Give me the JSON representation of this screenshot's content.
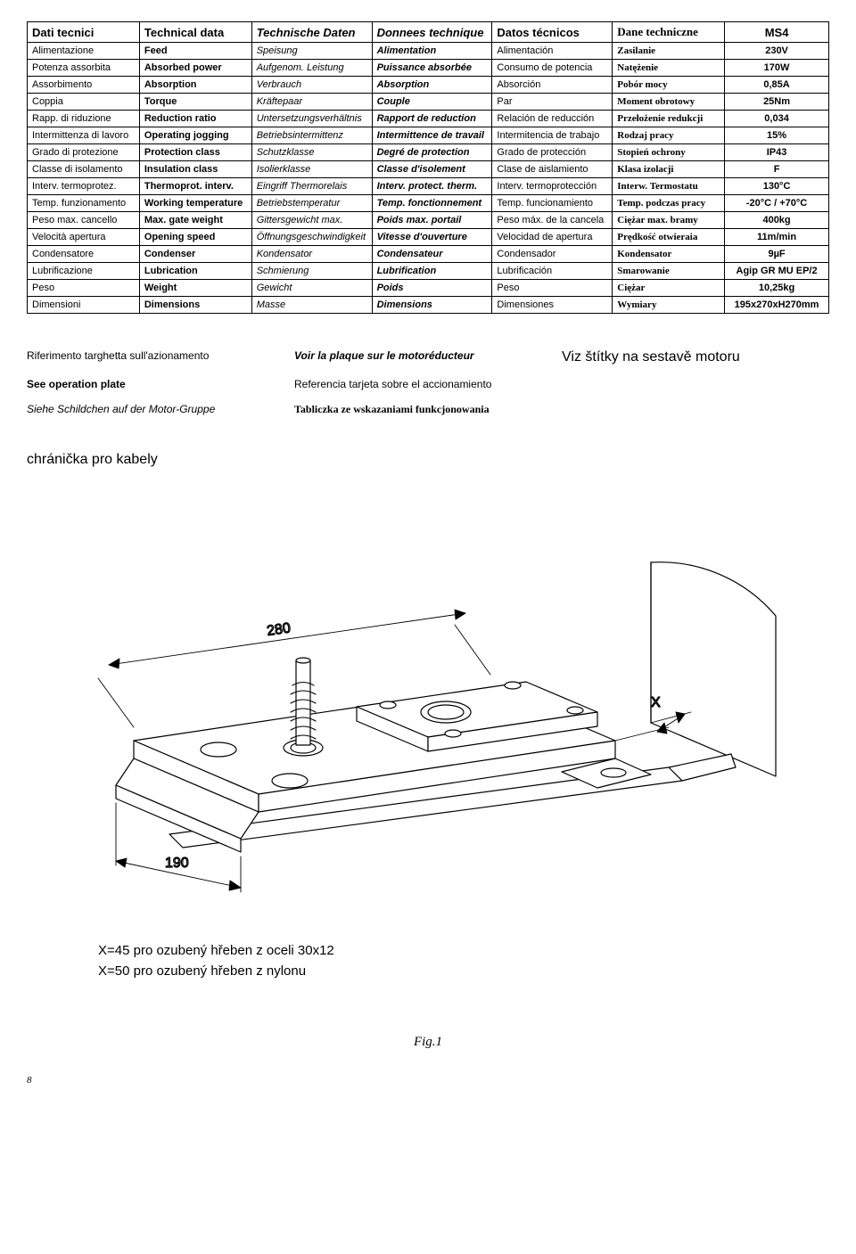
{
  "table": {
    "headers": {
      "it": "Dati tecnici",
      "en": "Technical data",
      "de": "Technische Daten",
      "fr": "Donnees technique",
      "es": "Datos técnicos",
      "pl": "Dane techniczne",
      "model": "MS4"
    },
    "rows": [
      {
        "it": "Alimentazione",
        "en": "Feed",
        "de": "Speisung",
        "fr": "Alimentation",
        "es": "Alimentación",
        "pl": "Zasilanie",
        "val": "230V"
      },
      {
        "it": "Potenza assorbita",
        "en": "Absorbed power",
        "de": "Aufgenom. Leistung",
        "fr": "Puissance absorbée",
        "es": "Consumo de potencia",
        "pl": "Natężenie",
        "val": "170W"
      },
      {
        "it": "Assorbimento",
        "en": "Absorption",
        "de": "Verbrauch",
        "fr": "Absorption",
        "es": "Absorción",
        "pl": "Pobór mocy",
        "val": "0,85A"
      },
      {
        "it": "Coppia",
        "en": "Torque",
        "de": "Kräftepaar",
        "fr": "Couple",
        "es": "Par",
        "pl": "Moment obrotowy",
        "val": "25Nm"
      },
      {
        "it": "Rapp. di riduzione",
        "en": "Reduction ratio",
        "de": "Untersetzungsverhältnis",
        "fr": "Rapport de reduction",
        "es": "Relación de reducción",
        "pl": "Przełożenie redukcji",
        "val": "0,034"
      },
      {
        "it": "Intermittenza di lavoro",
        "en": "Operating jogging",
        "de": "Betriebsintermittenz",
        "fr": "Intermittence de travail",
        "es": "Intermitencia de trabajo",
        "pl": "Rodzaj pracy",
        "val": "15%"
      },
      {
        "it": "Grado di protezione",
        "en": "Protection class",
        "de": "Schutzklasse",
        "fr": "Degré de protection",
        "es": "Grado de protección",
        "pl": "Stopień ochrony",
        "val": "IP43"
      },
      {
        "it": "Classe di isolamento",
        "en": "Insulation class",
        "de": "Isolierklasse",
        "fr": "Classe d'isolement",
        "es": "Clase de aislamiento",
        "pl": "Klasa izolacji",
        "val": "F"
      },
      {
        "it": "Interv. termoprotez.",
        "en": "Thermoprot. interv.",
        "de": "Eingriff Thermorelais",
        "fr": "Interv. protect. therm.",
        "es": "Interv. termoprotección",
        "pl": "Interw. Termostatu",
        "val": "130°C"
      },
      {
        "it": "Temp. funzionamento",
        "en": "Working temperature",
        "de": "Betriebstemperatur",
        "fr": "Temp. fonctionnement",
        "es": "Temp. funcionamiento",
        "pl": "Temp. podczas pracy",
        "val": "-20°C / +70°C"
      },
      {
        "it": "Peso max. cancello",
        "en": "Max. gate weight",
        "de": "Gittersgewicht max.",
        "fr": "Poids max. portail",
        "es": "Peso máx. de la cancela",
        "pl": "Ciężar max. bramy",
        "val": "400kg"
      },
      {
        "it": "Velocità apertura",
        "en": "Opening speed",
        "de": "Öffnungsgeschwindigkeit",
        "fr": "Vitesse d'ouverture",
        "es": "Velocidad de apertura",
        "pl": "Prędkość otwieraia",
        "val": "11m/min"
      },
      {
        "it": "Condensatore",
        "en": "Condenser",
        "de": "Kondensator",
        "fr": "Condensateur",
        "es": "Condensador",
        "pl": "Kondensator",
        "val": "9µF"
      },
      {
        "it": "Lubrificazione",
        "en": "Lubrication",
        "de": "Schmierung",
        "fr": "Lubrification",
        "es": "Lubrificación",
        "pl": "Smarowanie",
        "val": "Agip GR MU EP/2"
      },
      {
        "it": "Peso",
        "en": "Weight",
        "de": "Gewicht",
        "fr": "Poids",
        "es": "Peso",
        "pl": "Ciężar",
        "val": "10,25kg"
      },
      {
        "it": "Dimensioni",
        "en": "Dimensions",
        "de": "Masse",
        "fr": "Dimensions",
        "es": "Dimensiones",
        "pl": "Wymiary",
        "val": "195x270xH270mm"
      }
    ]
  },
  "notes": {
    "it": "Riferimento targhetta sull'azionamento",
    "fr": "Voir la plaque sur le motoréducteur",
    "cz": "Viz štítky na sestavě motoru",
    "en": "See operation plate",
    "es": "Referencia tarjeta sobre el accionamiento",
    "de": "Siehe Schildchen auf der Motor-Gruppe",
    "pl": "Tabliczka ze wskazaniami funkcjonowania"
  },
  "section_title": "chránička pro kabely",
  "diagram": {
    "dim_280": "280",
    "dim_190": "190",
    "dim_x": "X",
    "stroke": "#000000",
    "fill": "#ffffff"
  },
  "legend": {
    "line1": "X=45 pro ozubený hřeben z oceli 30x12",
    "line2": "X=50 pro ozubený hřeben z nylonu"
  },
  "figure_label": "Fig.1",
  "page_number": "8"
}
